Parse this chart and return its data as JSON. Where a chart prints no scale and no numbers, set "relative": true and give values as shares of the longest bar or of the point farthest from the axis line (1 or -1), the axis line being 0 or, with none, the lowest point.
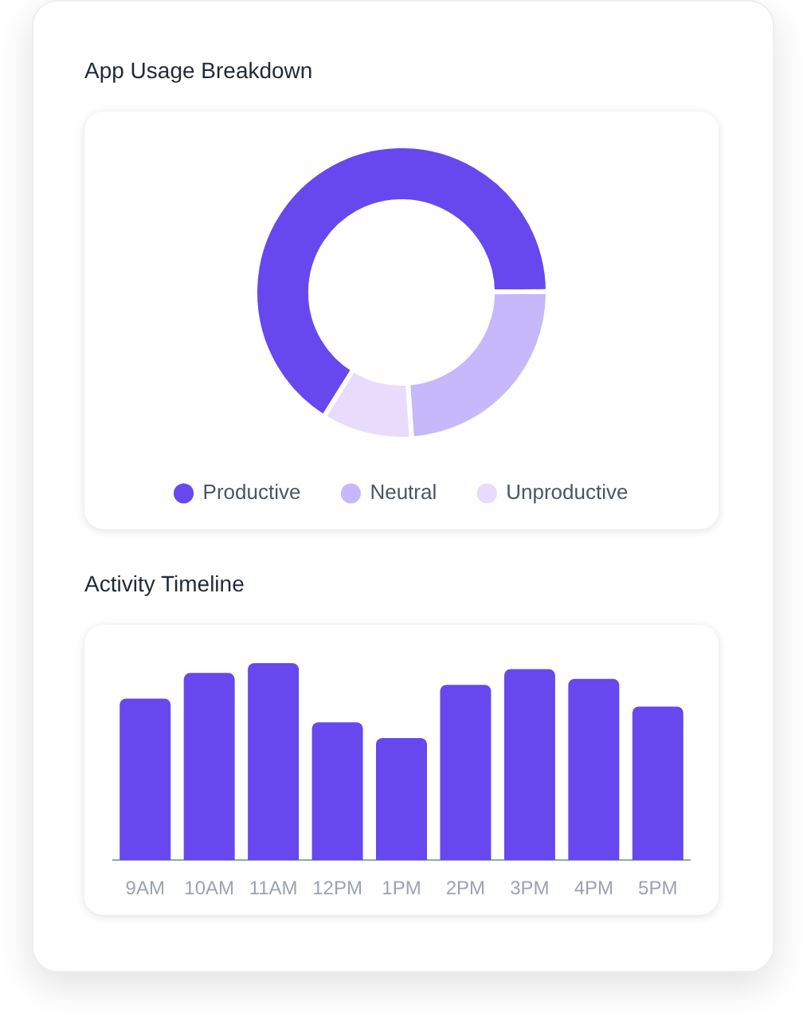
{
  "chart_data": [
    {
      "type": "donut",
      "title": "App Usage Breakdown",
      "categories": [
        "Productive",
        "Neutral",
        "Unproductive"
      ],
      "values": [
        66,
        24,
        10
      ],
      "colors": [
        "#6648ee",
        "#c6b8fb",
        "#e8dbfb"
      ],
      "legend": "bottom"
    },
    {
      "type": "bar",
      "title": "Activity Timeline",
      "categories": [
        "9AM",
        "10AM",
        "11AM",
        "12PM",
        "1PM",
        "2PM",
        "3PM",
        "4PM",
        "5PM"
      ],
      "values": [
        0.82,
        0.95,
        1,
        0.7,
        0.62,
        0.89,
        0.97,
        0.92,
        0.78
      ],
      "color": "#6648ee",
      "relative": true
    }
  ]
}
